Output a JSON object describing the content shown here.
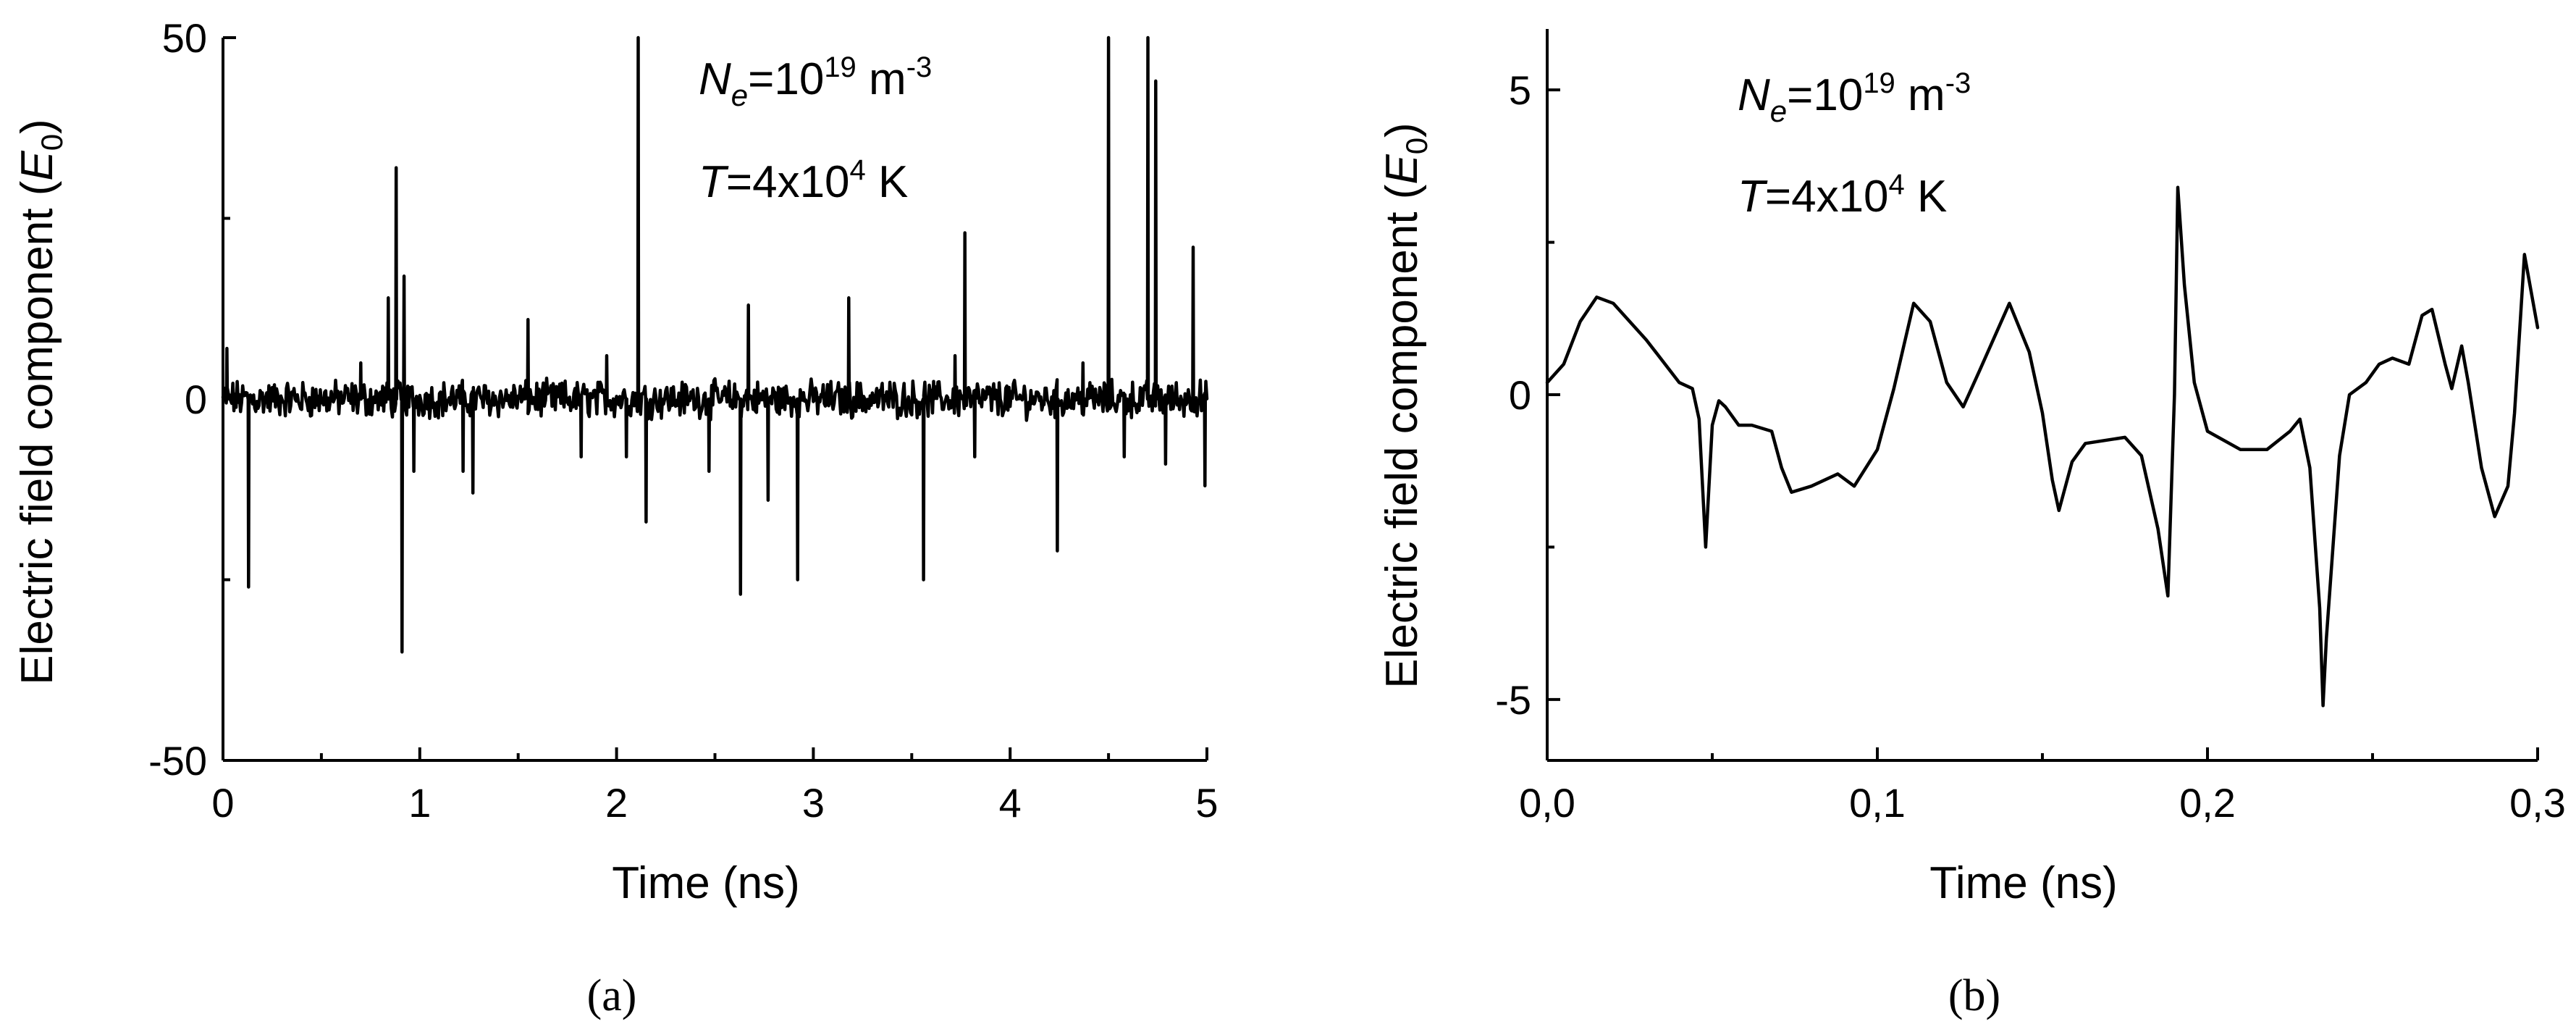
{
  "chart_data": [
    {
      "type": "line",
      "panel_label": "(a)",
      "xlabel": "Time (ns)",
      "ylabel_main": "Electric field component (",
      "ylabel_var": "E",
      "ylabel_sub": "0",
      "ylabel_end": ")",
      "xlim": [
        0,
        5
      ],
      "ylim": [
        -50,
        50
      ],
      "xticks": [
        0,
        1,
        2,
        3,
        4,
        5
      ],
      "xtick_labels": [
        "0",
        "1",
        "2",
        "3",
        "4",
        "5"
      ],
      "yticks": [
        -50,
        0,
        50
      ],
      "ytick_labels": [
        "-50",
        "0",
        "50"
      ],
      "annotation_ne": {
        "var": "N",
        "sub": "e",
        "mid": "=10",
        "sup1": "19",
        "unit": " m",
        "sup2": "-3"
      },
      "annotation_t": {
        "var": "T",
        "mid": "=4x10",
        "sup": "4",
        "unit": " K"
      },
      "noise_amplitude": 2,
      "spikes": [
        {
          "x": 0.02,
          "y": 7
        },
        {
          "x": 0.13,
          "y": -26
        },
        {
          "x": 0.7,
          "y": 5
        },
        {
          "x": 0.84,
          "y": 14
        },
        {
          "x": 0.88,
          "y": 32
        },
        {
          "x": 0.91,
          "y": -35
        },
        {
          "x": 0.92,
          "y": 17
        },
        {
          "x": 0.97,
          "y": -10
        },
        {
          "x": 1.22,
          "y": -10
        },
        {
          "x": 1.27,
          "y": -13
        },
        {
          "x": 1.55,
          "y": 11
        },
        {
          "x": 1.82,
          "y": -8
        },
        {
          "x": 1.95,
          "y": 6
        },
        {
          "x": 2.05,
          "y": -8
        },
        {
          "x": 2.11,
          "y": 50
        },
        {
          "x": 2.15,
          "y": -17
        },
        {
          "x": 2.47,
          "y": -10
        },
        {
          "x": 2.63,
          "y": -27
        },
        {
          "x": 2.67,
          "y": 13
        },
        {
          "x": 2.77,
          "y": -14
        },
        {
          "x": 2.92,
          "y": -25
        },
        {
          "x": 3.18,
          "y": 14
        },
        {
          "x": 3.56,
          "y": -25
        },
        {
          "x": 3.72,
          "y": 6
        },
        {
          "x": 3.77,
          "y": 23
        },
        {
          "x": 3.82,
          "y": -8
        },
        {
          "x": 4.24,
          "y": -21
        },
        {
          "x": 4.37,
          "y": 5
        },
        {
          "x": 4.5,
          "y": 50
        },
        {
          "x": 4.58,
          "y": -8
        },
        {
          "x": 4.7,
          "y": 50
        },
        {
          "x": 4.74,
          "y": 44
        },
        {
          "x": 4.79,
          "y": -9
        },
        {
          "x": 4.93,
          "y": 21
        },
        {
          "x": 4.99,
          "y": -12
        }
      ]
    },
    {
      "type": "line",
      "panel_label": "(b)",
      "xlabel": "Time (ns)",
      "ylabel_main": "Electric field component (",
      "ylabel_var": "E",
      "ylabel_sub": "0",
      "ylabel_end": ")",
      "xlim": [
        0,
        0.3
      ],
      "ylim": [
        -6,
        6
      ],
      "xticks": [
        0.0,
        0.1,
        0.2,
        0.3
      ],
      "xtick_labels": [
        "0,0",
        "0,1",
        "0,2",
        "0,3"
      ],
      "yticks": [
        -5,
        0,
        5
      ],
      "ytick_labels": [
        "-5",
        "0",
        "5"
      ],
      "annotation_ne": {
        "var": "N",
        "sub": "e",
        "mid": "=10",
        "sup1": "19",
        "unit": " m",
        "sup2": "-3"
      },
      "annotation_t": {
        "var": "T",
        "mid": "=4x10",
        "sup": "4",
        "unit": " K"
      },
      "x": [
        0.0,
        0.005,
        0.01,
        0.015,
        0.02,
        0.03,
        0.04,
        0.044,
        0.046,
        0.048,
        0.05,
        0.052,
        0.054,
        0.058,
        0.062,
        0.068,
        0.071,
        0.074,
        0.08,
        0.088,
        0.093,
        0.1,
        0.105,
        0.111,
        0.116,
        0.121,
        0.126,
        0.131,
        0.14,
        0.146,
        0.15,
        0.153,
        0.155,
        0.159,
        0.163,
        0.175,
        0.18,
        0.185,
        0.188,
        0.19,
        0.191,
        0.193,
        0.196,
        0.2,
        0.21,
        0.218,
        0.225,
        0.228,
        0.231,
        0.234,
        0.235,
        0.236,
        0.24,
        0.243,
        0.248,
        0.252,
        0.256,
        0.261,
        0.265,
        0.268,
        0.272,
        0.274,
        0.277,
        0.279,
        0.283,
        0.287,
        0.291,
        0.293,
        0.296,
        0.3
      ],
      "y": [
        0.2,
        0.5,
        1.2,
        1.6,
        1.5,
        0.9,
        0.2,
        0.1,
        -0.4,
        -2.5,
        -0.5,
        -0.1,
        -0.2,
        -0.5,
        -0.5,
        -0.6,
        -1.2,
        -1.6,
        -1.5,
        -1.3,
        -1.5,
        -0.9,
        0.1,
        1.5,
        1.2,
        0.2,
        -0.2,
        0.4,
        1.5,
        0.7,
        -0.3,
        -1.4,
        -1.9,
        -1.1,
        -0.8,
        -0.7,
        -1.0,
        -2.2,
        -3.3,
        0.0,
        3.4,
        1.8,
        0.2,
        -0.6,
        -0.9,
        -0.9,
        -0.6,
        -0.4,
        -1.2,
        -3.5,
        -5.1,
        -4.0,
        -1.0,
        0.0,
        0.2,
        0.5,
        0.6,
        0.5,
        1.3,
        1.4,
        0.5,
        0.1,
        0.8,
        0.2,
        -1.2,
        -2.0,
        -1.5,
        -0.3,
        2.3,
        1.1
      ]
    }
  ]
}
